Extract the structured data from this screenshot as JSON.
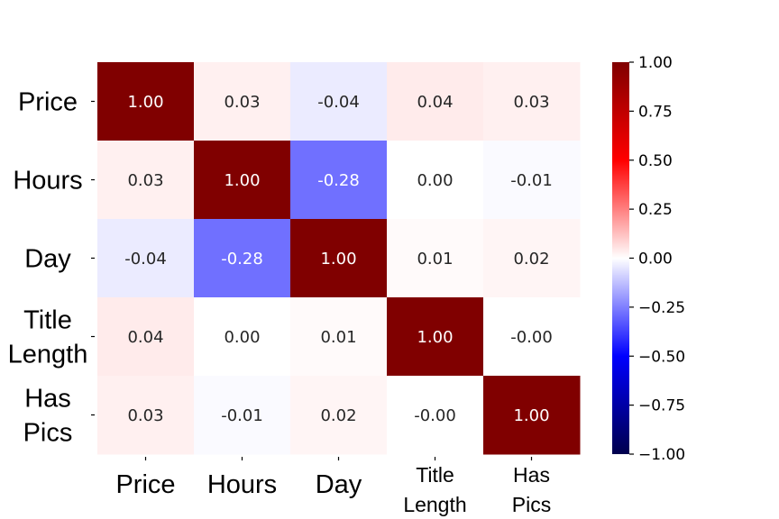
{
  "chart_data": {
    "type": "heatmap",
    "rows": [
      [
        "Price"
      ],
      [
        "Hours"
      ],
      [
        "Day"
      ],
      [
        "Title",
        "Length"
      ],
      [
        "Has",
        "Pics"
      ]
    ],
    "cols": [
      [
        "Price"
      ],
      [
        "Hours"
      ],
      [
        "Day"
      ],
      [
        "Title",
        "Length"
      ],
      [
        "Has",
        "Pics"
      ]
    ],
    "values": [
      [
        1.0,
        0.03,
        -0.04,
        0.04,
        0.03
      ],
      [
        0.03,
        1.0,
        -0.28,
        0.0,
        -0.01
      ],
      [
        -0.04,
        -0.28,
        1.0,
        0.01,
        0.02
      ],
      [
        0.04,
        0.0,
        0.01,
        1.0,
        -0.0
      ],
      [
        0.03,
        -0.01,
        0.02,
        -0.0,
        1.0
      ]
    ],
    "labels": [
      [
        "1.00",
        "0.03",
        "-0.04",
        "0.04",
        "0.03"
      ],
      [
        "0.03",
        "1.00",
        "-0.28",
        "0.00",
        "-0.01"
      ],
      [
        "-0.04",
        "-0.28",
        "1.00",
        "0.01",
        "0.02"
      ],
      [
        "0.04",
        "0.00",
        "0.01",
        "1.00",
        "-0.00"
      ],
      [
        "0.03",
        "-0.01",
        "0.02",
        "-0.00",
        "1.00"
      ]
    ],
    "colormap": "seismic",
    "vmin": -1.0,
    "vmax": 1.0,
    "colorbar_ticks": [
      "1.00",
      "0.75",
      "0.50",
      "0.25",
      "0.00",
      "−0.25",
      "−0.50",
      "−0.75",
      "−1.00"
    ],
    "colorbar_tick_values": [
      1.0,
      0.75,
      0.5,
      0.25,
      0.0,
      -0.25,
      -0.5,
      -0.75,
      -1.0
    ],
    "title": "",
    "xlabel": "",
    "ylabel": ""
  }
}
